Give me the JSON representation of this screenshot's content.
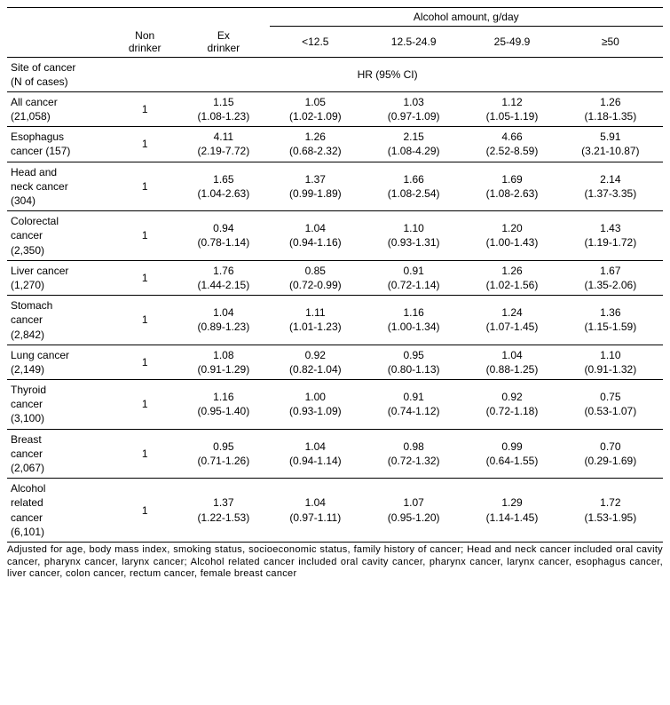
{
  "header": {
    "alcohol_amount": "Alcohol amount, g/day",
    "non_drinker": "Non drinker",
    "ex_drinker": "Ex drinker",
    "c1": "<12.5",
    "c2": "12.5-24.9",
    "c3": "25-49.9",
    "c4": "≥50",
    "site_label1": "Site of cancer",
    "site_label2": "(N of cases)",
    "hr_ci": "HR (95% CI)"
  },
  "rows": [
    {
      "site1": "All cancer",
      "site2": "(21,058)",
      "nd": "1",
      "ex_hr": "1.15",
      "ex_ci": "(1.08-1.23)",
      "c1_hr": "1.05",
      "c1_ci": "(1.02-1.09)",
      "c2_hr": "1.03",
      "c2_ci": "(0.97-1.09)",
      "c3_hr": "1.12",
      "c3_ci": "(1.05-1.19)",
      "c4_hr": "1.26",
      "c4_ci": "(1.18-1.35)"
    },
    {
      "site1": "Esophagus",
      "site2": "cancer (157)",
      "nd": "1",
      "ex_hr": "4.11",
      "ex_ci": "(2.19-7.72)",
      "c1_hr": "1.26",
      "c1_ci": "(0.68-2.32)",
      "c2_hr": "2.15",
      "c2_ci": "(1.08-4.29)",
      "c3_hr": "4.66",
      "c3_ci": "(2.52-8.59)",
      "c4_hr": "5.91",
      "c4_ci": "(3.21-10.87)"
    },
    {
      "site1": "Head and",
      "site2": "neck cancer",
      "site3": "(304)",
      "nd": "1",
      "ex_hr": "1.65",
      "ex_ci": "(1.04-2.63)",
      "c1_hr": "1.37",
      "c1_ci": "(0.99-1.89)",
      "c2_hr": "1.66",
      "c2_ci": "(1.08-2.54)",
      "c3_hr": "1.69",
      "c3_ci": "(1.08-2.63)",
      "c4_hr": "2.14",
      "c4_ci": "(1.37-3.35)"
    },
    {
      "site1": "Colorectal",
      "site2": "cancer",
      "site3": "(2,350)",
      "nd": "1",
      "ex_hr": "0.94",
      "ex_ci": "(0.78-1.14)",
      "c1_hr": "1.04",
      "c1_ci": "(0.94-1.16)",
      "c2_hr": "1.10",
      "c2_ci": "(0.93-1.31)",
      "c3_hr": "1.20",
      "c3_ci": "(1.00-1.43)",
      "c4_hr": "1.43",
      "c4_ci": "(1.19-1.72)"
    },
    {
      "site1": "Liver cancer",
      "site2": "(1,270)",
      "nd": "1",
      "ex_hr": "1.76",
      "ex_ci": "(1.44-2.15)",
      "c1_hr": "0.85",
      "c1_ci": "(0.72-0.99)",
      "c2_hr": "0.91",
      "c2_ci": "(0.72-1.14)",
      "c3_hr": "1.26",
      "c3_ci": "(1.02-1.56)",
      "c4_hr": "1.67",
      "c4_ci": "(1.35-2.06)"
    },
    {
      "site1": "Stomach",
      "site2": "cancer",
      "site3": "(2,842)",
      "nd": "1",
      "ex_hr": "1.04",
      "ex_ci": "(0.89-1.23)",
      "c1_hr": "1.11",
      "c1_ci": "(1.01-1.23)",
      "c2_hr": "1.16",
      "c2_ci": "(1.00-1.34)",
      "c3_hr": "1.24",
      "c3_ci": "(1.07-1.45)",
      "c4_hr": "1.36",
      "c4_ci": "(1.15-1.59)"
    },
    {
      "site1": "Lung cancer",
      "site2": "(2,149)",
      "nd": "1",
      "ex_hr": "1.08",
      "ex_ci": "(0.91-1.29)",
      "c1_hr": "0.92",
      "c1_ci": "(0.82-1.04)",
      "c2_hr": "0.95",
      "c2_ci": "(0.80-1.13)",
      "c3_hr": "1.04",
      "c3_ci": "(0.88-1.25)",
      "c4_hr": "1.10",
      "c4_ci": "(0.91-1.32)"
    },
    {
      "site1": "Thyroid",
      "site2": "cancer",
      "site3": "(3,100)",
      "nd": "1",
      "ex_hr": "1.16",
      "ex_ci": "(0.95-1.40)",
      "c1_hr": "1.00",
      "c1_ci": "(0.93-1.09)",
      "c2_hr": "0.91",
      "c2_ci": "(0.74-1.12)",
      "c3_hr": "0.92",
      "c3_ci": "(0.72-1.18)",
      "c4_hr": "0.75",
      "c4_ci": "(0.53-1.07)"
    },
    {
      "site1": "Breast",
      "site2": "cancer",
      "site3": "(2,067)",
      "nd": "1",
      "ex_hr": "0.95",
      "ex_ci": "(0.71-1.26)",
      "c1_hr": "1.04",
      "c1_ci": "(0.94-1.14)",
      "c2_hr": "0.98",
      "c2_ci": "(0.72-1.32)",
      "c3_hr": "0.99",
      "c3_ci": "(0.64-1.55)",
      "c4_hr": "0.70",
      "c4_ci": "(0.29-1.69)"
    },
    {
      "site1": "Alcohol",
      "site2": "related",
      "site3": "cancer",
      "site4": "(6,101)",
      "nd": "1",
      "ex_hr": "1.37",
      "ex_ci": "(1.22-1.53)",
      "c1_hr": "1.04",
      "c1_ci": "(0.97-1.11)",
      "c2_hr": "1.07",
      "c2_ci": "(0.95-1.20)",
      "c3_hr": "1.29",
      "c3_ci": "(1.14-1.45)",
      "c4_hr": "1.72",
      "c4_ci": "(1.53-1.95)"
    }
  ],
  "footnote": "Adjusted for age, body mass index, smoking status, socioeconomic status, family history of cancer; Head and neck cancer included oral cavity cancer, pharynx cancer, larynx cancer; Alcohol related cancer included oral cavity cancer, pharynx cancer, larynx cancer, esophagus cancer, liver cancer, colon cancer, rectum cancer, female breast cancer",
  "colwidths": [
    "16%",
    "10%",
    "14%",
    "14%",
    "16%",
    "14%",
    "16%"
  ]
}
